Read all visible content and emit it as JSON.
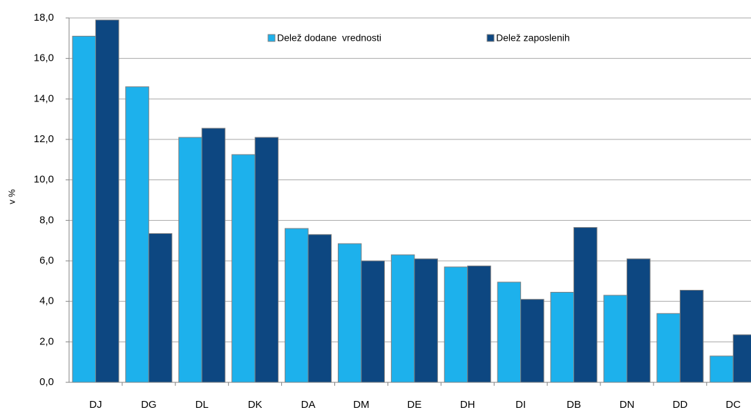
{
  "chart_data": {
    "type": "bar",
    "ylabel": "v %",
    "categories": [
      "DJ",
      "DG",
      "DL",
      "DK",
      "DA",
      "DM",
      "DE",
      "DH",
      "DI",
      "DB",
      "DN",
      "DD",
      "DC"
    ],
    "series": [
      {
        "name": "Delež dodane  vrednosti",
        "color": "#1db1ec",
        "values": [
          17.1,
          14.6,
          12.1,
          11.25,
          7.6,
          6.85,
          6.3,
          5.7,
          4.95,
          4.45,
          4.3,
          3.4,
          1.3
        ]
      },
      {
        "name": "Delež zaposlenih",
        "color": "#0d4781",
        "values": [
          17.9,
          7.35,
          12.55,
          12.1,
          7.3,
          6.0,
          6.1,
          5.75,
          4.1,
          7.65,
          6.1,
          4.55,
          2.35
        ]
      }
    ],
    "ylim": [
      0,
      18
    ],
    "yticks": [
      {
        "value": 0,
        "label": "0,0"
      },
      {
        "value": 2,
        "label": "2,0"
      },
      {
        "value": 4,
        "label": "4,0"
      },
      {
        "value": 6,
        "label": "6,0"
      },
      {
        "value": 8,
        "label": "8,0"
      },
      {
        "value": 10,
        "label": "10,0"
      },
      {
        "value": 12,
        "label": "12,0"
      },
      {
        "value": 14,
        "label": "14,0"
      },
      {
        "value": 16,
        "label": "16,0"
      },
      {
        "value": 18,
        "label": "18,0"
      }
    ],
    "grid": true,
    "legend": "top"
  }
}
